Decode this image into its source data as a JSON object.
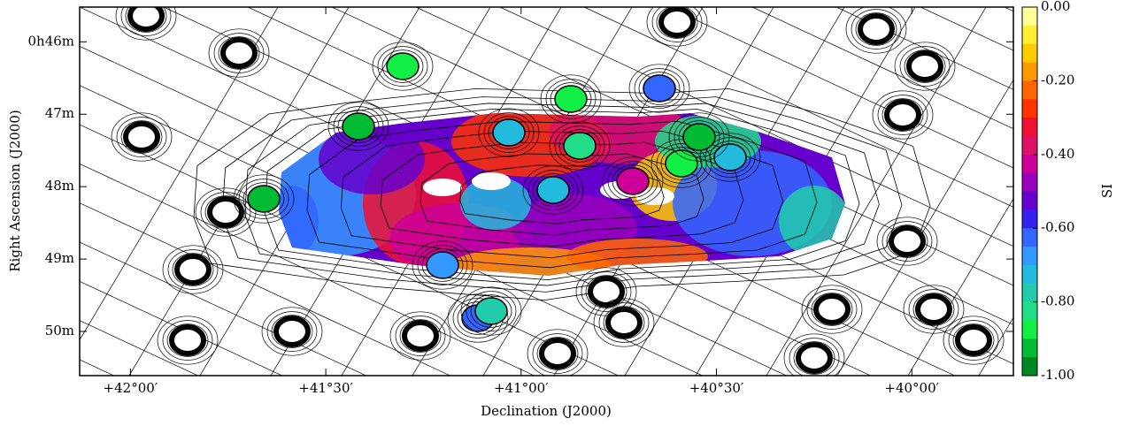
{
  "chart_data": {
    "type": "map",
    "xlabel": "Declination (J2000)",
    "ylabel": "Right Ascension (J2000)",
    "xlim": [
      42.13,
      39.74
    ],
    "xticks": [
      {
        "value": 42,
        "label": "+42°00′"
      },
      {
        "value": 41.5,
        "label": "+41°30′"
      },
      {
        "value": 41,
        "label": "+41°00′"
      },
      {
        "value": 40.5,
        "label": "+40°30′"
      },
      {
        "value": 40,
        "label": "+40°00′"
      }
    ],
    "ylim": [
      45.52,
      50.61
    ],
    "yticks": [
      {
        "value": 46,
        "label": "0h46m"
      },
      {
        "value": 47,
        "label": "47m"
      },
      {
        "value": 48,
        "label": "48m"
      },
      {
        "value": 49,
        "label": "49m"
      },
      {
        "value": 50,
        "label": "50m"
      }
    ],
    "colorbar": {
      "label": "SI",
      "clim": [
        -1,
        0
      ],
      "ticks": [
        {
          "value": 0,
          "label": "0.00"
        },
        {
          "value": -0.2,
          "label": "-0.20"
        },
        {
          "value": -0.4,
          "label": "-0.40"
        },
        {
          "value": -0.6,
          "label": "-0.60"
        },
        {
          "value": -0.8,
          "label": "-0.80"
        },
        {
          "value": -1,
          "label": "-1.00"
        }
      ],
      "colors": [
        "#ffff99",
        "#ffee33",
        "#ffcc00",
        "#ff9900",
        "#ff6600",
        "#ff3300",
        "#ee1133",
        "#dd1166",
        "#cc0099",
        "#9900bb",
        "#6600cc",
        "#3322ee",
        "#3366ff",
        "#3399ff",
        "#22bbdd",
        "#22ccaa",
        "#22dd88",
        "#11ee44",
        "#00bb33",
        "#008822"
      ]
    }
  }
}
